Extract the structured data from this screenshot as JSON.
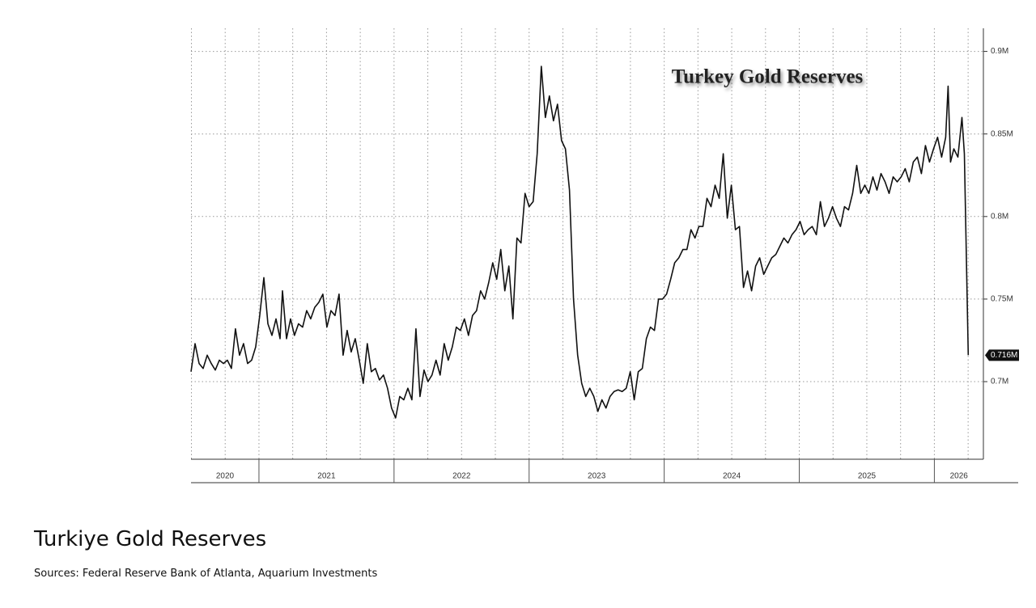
{
  "chart_data": {
    "type": "line",
    "title": "Turkey Gold Reserves",
    "caption": "Turkiye Gold Reserves",
    "source": "Sources: Federal Reserve Bank of Atlanta, Aquarium Investments",
    "xlim": [
      2020.497,
      2026.363
    ],
    "ylim": [
      0.653,
      0.914
    ],
    "yticks": [
      {
        "value": 0.7,
        "label": "0.7M"
      },
      {
        "value": 0.75,
        "label": "0.75M"
      },
      {
        "value": 0.8,
        "label": "0.8M"
      },
      {
        "value": 0.85,
        "label": "0.85M"
      },
      {
        "value": 0.9,
        "label": "0.9M"
      }
    ],
    "xticks": [
      2021,
      2022,
      2023,
      2024,
      2025,
      2026
    ],
    "xgrid_ticks": [
      2020.5,
      2020.75,
      2021,
      2021.25,
      2021.5,
      2021.75,
      2022,
      2022.25,
      2022.5,
      2022.75,
      2023,
      2023.25,
      2023.5,
      2023.75,
      2024,
      2024.25,
      2024.5,
      2024.75,
      2025,
      2025.25,
      2025.5,
      2025.75,
      2026,
      2026.25
    ],
    "year_labels": [
      "2020",
      "2021",
      "2022",
      "2023",
      "2024",
      "2025",
      "2026"
    ],
    "grid": true,
    "color": "#111111",
    "last_label": {
      "value": 0.716,
      "label": "0.716M"
    },
    "series": [
      {
        "name": "Turkey Gold Reserves",
        "color": "#111111",
        "x": [
          2020.497,
          2020.527,
          2020.557,
          2020.587,
          2020.617,
          2020.647,
          2020.677,
          2020.707,
          2020.737,
          2020.766,
          2020.796,
          2020.826,
          2020.856,
          2020.886,
          2020.916,
          2020.946,
          2020.976,
          2021.006,
          2021.036,
          2021.066,
          2021.096,
          2021.126,
          2021.156,
          2021.174,
          2021.204,
          2021.234,
          2021.263,
          2021.293,
          2021.323,
          2021.353,
          2021.383,
          2021.413,
          2021.443,
          2021.473,
          2021.503,
          2021.533,
          2021.563,
          2021.593,
          2021.623,
          2021.653,
          2021.683,
          2021.713,
          2021.743,
          2021.772,
          2021.802,
          2021.832,
          2021.862,
          2021.892,
          2021.922,
          2021.952,
          2021.982,
          2022.012,
          2022.042,
          2022.072,
          2022.102,
          2022.132,
          2022.162,
          2022.192,
          2022.222,
          2022.251,
          2022.281,
          2022.311,
          2022.341,
          2022.371,
          2022.401,
          2022.431,
          2022.461,
          2022.491,
          2022.521,
          2022.551,
          2022.581,
          2022.611,
          2022.641,
          2022.671,
          2022.701,
          2022.731,
          2022.76,
          2022.79,
          2022.82,
          2022.85,
          2022.88,
          2022.91,
          2022.94,
          2022.97,
          2023.0,
          2023.03,
          2023.06,
          2023.09,
          2023.12,
          2023.15,
          2023.18,
          2023.21,
          2023.24,
          2023.269,
          2023.299,
          2023.329,
          2023.359,
          2023.389,
          2023.419,
          2023.449,
          2023.479,
          2023.509,
          2023.539,
          2023.569,
          2023.599,
          2023.629,
          2023.659,
          2023.689,
          2023.719,
          2023.749,
          2023.778,
          2023.808,
          2023.838,
          2023.868,
          2023.898,
          2023.928,
          2023.958,
          2023.988,
          2024.018,
          2024.048,
          2024.078,
          2024.108,
          2024.138,
          2024.168,
          2024.198,
          2024.228,
          2024.257,
          2024.287,
          2024.317,
          2024.347,
          2024.377,
          2024.407,
          2024.437,
          2024.467,
          2024.497,
          2024.527,
          2024.557,
          2024.587,
          2024.617,
          2024.647,
          2024.677,
          2024.707,
          2024.737,
          2024.766,
          2024.796,
          2024.826,
          2024.856,
          2024.886,
          2024.916,
          2024.946,
          2024.976,
          2025.006,
          2025.036,
          2025.066,
          2025.096,
          2025.126,
          2025.156,
          2025.186,
          2025.216,
          2025.246,
          2025.275,
          2025.305,
          2025.335,
          2025.365,
          2025.395,
          2025.425,
          2025.455,
          2025.485,
          2025.515,
          2025.545,
          2025.575,
          2025.605,
          2025.635,
          2025.665,
          2025.695,
          2025.725,
          2025.754,
          2025.784,
          2025.814,
          2025.844,
          2025.874,
          2025.904,
          2025.934,
          2025.964,
          2025.994,
          2026.024,
          2026.054,
          2026.084,
          2026.102,
          2026.12,
          2026.144,
          2026.174,
          2026.204,
          2026.222,
          2026.251
        ],
        "values": [
          0.706,
          0.723,
          0.711,
          0.708,
          0.716,
          0.711,
          0.707,
          0.713,
          0.711,
          0.713,
          0.708,
          0.732,
          0.716,
          0.723,
          0.711,
          0.713,
          0.721,
          0.74,
          0.763,
          0.735,
          0.728,
          0.738,
          0.726,
          0.755,
          0.726,
          0.738,
          0.728,
          0.735,
          0.733,
          0.743,
          0.738,
          0.745,
          0.748,
          0.753,
          0.733,
          0.743,
          0.74,
          0.753,
          0.716,
          0.731,
          0.718,
          0.726,
          0.713,
          0.699,
          0.723,
          0.706,
          0.708,
          0.701,
          0.704,
          0.696,
          0.684,
          0.678,
          0.691,
          0.689,
          0.696,
          0.689,
          0.732,
          0.691,
          0.707,
          0.7,
          0.704,
          0.713,
          0.704,
          0.723,
          0.713,
          0.721,
          0.733,
          0.731,
          0.738,
          0.728,
          0.74,
          0.743,
          0.755,
          0.75,
          0.76,
          0.772,
          0.762,
          0.78,
          0.755,
          0.77,
          0.738,
          0.787,
          0.784,
          0.814,
          0.806,
          0.809,
          0.838,
          0.891,
          0.86,
          0.873,
          0.858,
          0.868,
          0.846,
          0.841,
          0.816,
          0.75,
          0.716,
          0.699,
          0.691,
          0.696,
          0.691,
          0.682,
          0.689,
          0.684,
          0.691,
          0.694,
          0.695,
          0.694,
          0.696,
          0.706,
          0.689,
          0.706,
          0.708,
          0.726,
          0.733,
          0.731,
          0.75,
          0.75,
          0.753,
          0.762,
          0.772,
          0.775,
          0.78,
          0.78,
          0.792,
          0.787,
          0.794,
          0.794,
          0.811,
          0.806,
          0.819,
          0.811,
          0.838,
          0.799,
          0.819,
          0.792,
          0.794,
          0.757,
          0.767,
          0.755,
          0.77,
          0.775,
          0.765,
          0.77,
          0.775,
          0.777,
          0.782,
          0.787,
          0.784,
          0.789,
          0.792,
          0.797,
          0.789,
          0.792,
          0.794,
          0.789,
          0.809,
          0.794,
          0.799,
          0.806,
          0.799,
          0.794,
          0.806,
          0.804,
          0.814,
          0.831,
          0.814,
          0.819,
          0.814,
          0.824,
          0.816,
          0.826,
          0.821,
          0.814,
          0.824,
          0.821,
          0.824,
          0.829,
          0.821,
          0.833,
          0.836,
          0.826,
          0.843,
          0.833,
          0.841,
          0.848,
          0.836,
          0.848,
          0.879,
          0.833,
          0.841,
          0.836,
          0.86,
          0.838,
          0.716
        ]
      }
    ]
  }
}
